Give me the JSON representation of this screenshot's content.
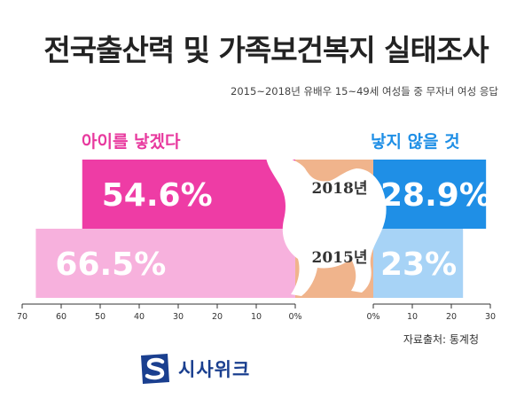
{
  "title": "전국출산력 및 가족보건복지 실태조사",
  "subtitle": "2015~2018년 유배우 15~49세 여성들 중 무자녀 여성 응답",
  "left_label": "아이를 낳겠다",
  "right_label": "낳지 않을 것",
  "source": "자료출처: 통계청",
  "logo_text": "시사위크",
  "colors": {
    "left_2018": "#ee3ca5",
    "left_2015": "#f7b1dd",
    "right_2018": "#1f8fe6",
    "right_2015": "#a7d3f6",
    "year_block": "#f0b48c",
    "logo": "#1a3f8f"
  },
  "chart_data": {
    "type": "bar",
    "categories": [
      "2018년",
      "2015년"
    ],
    "series": [
      {
        "name": "아이를 낳겠다",
        "values": [
          54.6,
          66.5
        ],
        "labels": [
          "54.6%",
          "66.5%"
        ]
      },
      {
        "name": "낳지 않을 것",
        "values": [
          28.9,
          23
        ],
        "labels": [
          "28.9%",
          "23%"
        ]
      }
    ],
    "left_axis": {
      "ticks": [
        "70",
        "60",
        "50",
        "40",
        "30",
        "20",
        "10",
        "0%"
      ],
      "range": [
        0,
        70
      ]
    },
    "right_axis": {
      "ticks": [
        "0%",
        "10",
        "20",
        "30"
      ],
      "range": [
        0,
        30
      ]
    }
  }
}
